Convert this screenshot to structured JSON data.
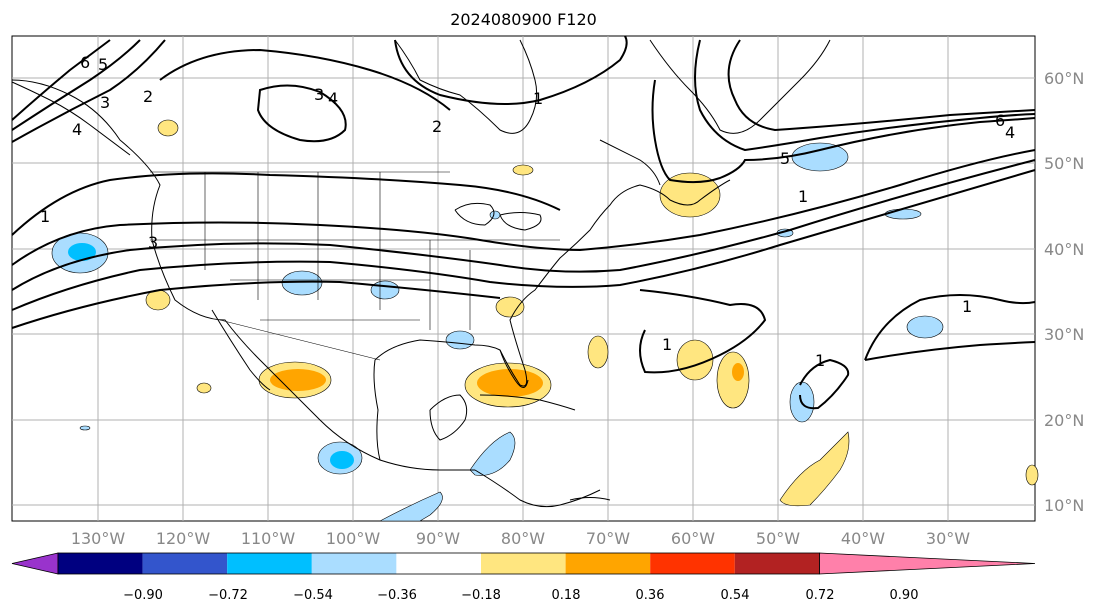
{
  "title": "2024080900 F120",
  "lat_labels": [
    "60°N",
    "50°N",
    "40°N",
    "30°N",
    "20°N",
    "10°N"
  ],
  "lon_labels": [
    "130°W",
    "120°W",
    "110°W",
    "100°W",
    "90°W",
    "80°W",
    "70°W",
    "60°W",
    "50°W",
    "40°W",
    "30°W"
  ],
  "contour_labels": [
    "6",
    "5",
    "4",
    "3",
    "2",
    "3",
    "4",
    "1",
    "2",
    "1",
    "3",
    "6",
    "5",
    "4",
    "1",
    "1",
    "1",
    "1"
  ],
  "colorbar": {
    "ticks": [
      "−0.90",
      "−0.72",
      "−0.54",
      "−0.36",
      "−0.18",
      "0.18",
      "0.36",
      "0.54",
      "0.72",
      "0.90"
    ],
    "colors": [
      "#9933cc",
      "#000080",
      "#3355cc",
      "#00bfff",
      "#aaddff",
      "#ffffff",
      "#ffe680",
      "#ffa500",
      "#ff3300",
      "#b22222",
      "#ff80aa"
    ]
  }
}
